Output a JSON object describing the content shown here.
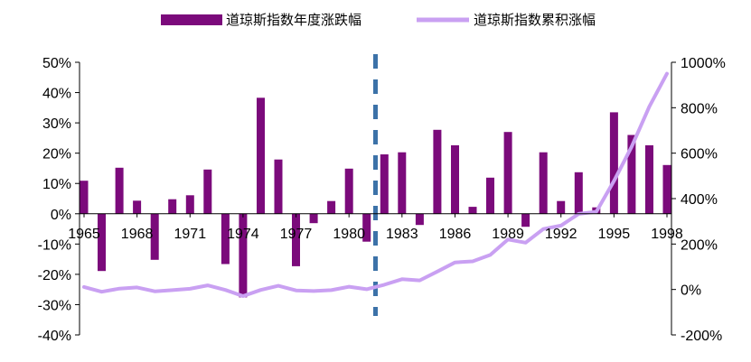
{
  "chart_data": {
    "type": "bar+line",
    "title": "",
    "colors": {
      "bars": "#7B0A7B",
      "line": "#C9A0F2",
      "divider": "#3C72A8",
      "axis": "#000000"
    },
    "legend": {
      "placement": "top",
      "entries": [
        "道琼斯指数年度涨跌幅",
        "道琼斯指数累积涨幅"
      ]
    },
    "categories": [
      1965,
      1966,
      1967,
      1968,
      1969,
      1970,
      1971,
      1972,
      1973,
      1974,
      1975,
      1976,
      1977,
      1978,
      1979,
      1980,
      1981,
      1982,
      1983,
      1984,
      1985,
      1986,
      1987,
      1988,
      1989,
      1990,
      1991,
      1992,
      1993,
      1994,
      1995,
      1996,
      1997,
      1998
    ],
    "x_tick_labels": [
      "1965",
      "1968",
      "1971",
      "1974",
      "1977",
      "1980",
      "1983",
      "1986",
      "1989",
      "1992",
      "1995",
      "1998"
    ],
    "x_tick_years": [
      1965,
      1968,
      1971,
      1974,
      1977,
      1980,
      1983,
      1986,
      1989,
      1992,
      1995,
      1998
    ],
    "series": [
      {
        "name": "道琼斯指数年度涨跌幅",
        "type": "bar",
        "axis": "left",
        "values": [
          10.9,
          -18.9,
          15.2,
          4.3,
          -15.2,
          4.8,
          6.1,
          14.6,
          -16.6,
          -27.6,
          38.3,
          17.9,
          -17.3,
          -3.1,
          4.2,
          14.9,
          -9.2,
          19.6,
          20.3,
          -3.7,
          27.7,
          22.6,
          2.3,
          11.9,
          27.0,
          -4.3,
          20.3,
          4.2,
          13.7,
          2.1,
          33.5,
          26.0,
          22.6,
          16.1
        ]
      },
      {
        "name": "道琼斯指数累积涨幅",
        "type": "line",
        "axis": "right",
        "values": [
          11,
          -10,
          4,
          9,
          -8,
          -3,
          3,
          18,
          -2,
          -29,
          -2,
          16,
          -4,
          -7,
          -3,
          12,
          1,
          21,
          45,
          40,
          79,
          119,
          124,
          152,
          220,
          206,
          266,
          281,
          333,
          342,
          478,
          628,
          805,
          950
        ]
      }
    ],
    "y_left": {
      "min": -40,
      "max": 50,
      "step": 10,
      "tick_labels": [
        "50%",
        "40%",
        "30%",
        "20%",
        "10%",
        "0%",
        "-10%",
        "-20%",
        "-30%",
        "-40%"
      ]
    },
    "y_right": {
      "min": -200,
      "max": 1000,
      "step": 200,
      "tick_labels": [
        "1000%",
        "800%",
        "600%",
        "400%",
        "200%",
        "0%",
        "-200%"
      ]
    },
    "divider_year": 1981.5,
    "grid": false
  }
}
